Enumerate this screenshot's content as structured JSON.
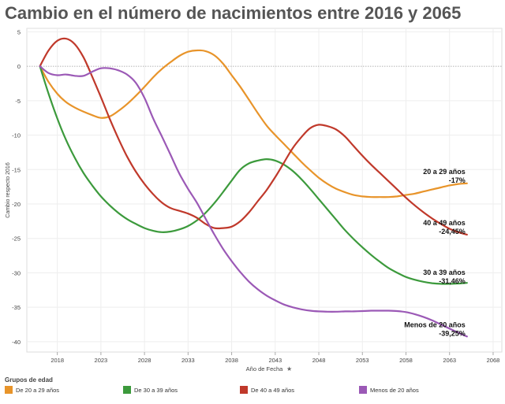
{
  "title": "Cambio en el número de nacimientos entre 2016 y 2065",
  "legend_title": "Grupos de edad",
  "legend": [
    {
      "label": "De 20 a 29 años",
      "color": "#E8942A"
    },
    {
      "label": "De 30 a 39 años",
      "color": "#3C9A3C"
    },
    {
      "label": "De 40 a 49 años",
      "color": "#C0392B"
    },
    {
      "label": "Menos de 20 años",
      "color": "#9B59B6"
    }
  ],
  "chart_data": {
    "type": "line",
    "title": "Cambio en el número de nacimientos entre 2016 y 2065",
    "xlabel": "Año de Fecha",
    "ylabel": "Cambio respecto 2016",
    "xlim": [
      2014.5,
      2069
    ],
    "ylim": [
      -41.5,
      5.5
    ],
    "x_ticks": [
      2018,
      2023,
      2028,
      2033,
      2038,
      2043,
      2048,
      2053,
      2058,
      2063,
      2068
    ],
    "y_ticks": [
      5,
      0,
      -5,
      -10,
      -15,
      -20,
      -25,
      -30,
      -35,
      -40
    ],
    "grid": true,
    "series": [
      {
        "name": "20 a 29 años",
        "color": "#E8942A",
        "end_label": "20 a 29 años",
        "end_value": "-17%",
        "x": [
          2016,
          2017,
          2018,
          2019,
          2020,
          2021,
          2022,
          2023,
          2024,
          2025,
          2026,
          2027,
          2028,
          2029,
          2030,
          2031,
          2032,
          2033,
          2034,
          2035,
          2036,
          2037,
          2038,
          2039,
          2040,
          2041,
          2042,
          2043,
          2044,
          2045,
          2046,
          2047,
          2048,
          2049,
          2050,
          2051,
          2052,
          2053,
          2054,
          2055,
          2056,
          2057,
          2058,
          2059,
          2060,
          2061,
          2062,
          2063,
          2064,
          2065
        ],
        "values": [
          0,
          -2.3,
          -4,
          -5.2,
          -6,
          -6.6,
          -7.1,
          -7.5,
          -7.3,
          -6.5,
          -5.5,
          -4.3,
          -3,
          -1.6,
          -0.4,
          0.6,
          1.5,
          2.1,
          2.3,
          2.2,
          1.6,
          0.4,
          -1.3,
          -3,
          -4.9,
          -6.8,
          -8.6,
          -10,
          -11.3,
          -12.6,
          -13.9,
          -15.1,
          -16.2,
          -17.1,
          -17.8,
          -18.3,
          -18.7,
          -18.9,
          -19,
          -19,
          -19,
          -18.9,
          -18.7,
          -18.5,
          -18.2,
          -17.9,
          -17.6,
          -17.3,
          -17.1,
          -17
        ]
      },
      {
        "name": "30 a 39 años",
        "color": "#3C9A3C",
        "end_label": "30 a 39 años",
        "end_value": "-31,46%",
        "x": [
          2016,
          2017,
          2018,
          2019,
          2020,
          2021,
          2022,
          2023,
          2024,
          2025,
          2026,
          2027,
          2028,
          2029,
          2030,
          2031,
          2032,
          2033,
          2034,
          2035,
          2036,
          2037,
          2038,
          2039,
          2040,
          2041,
          2042,
          2043,
          2044,
          2045,
          2046,
          2047,
          2048,
          2049,
          2050,
          2051,
          2052,
          2053,
          2054,
          2055,
          2056,
          2057,
          2058,
          2059,
          2060,
          2061,
          2062,
          2063,
          2064,
          2065
        ],
        "values": [
          0,
          -4,
          -7.6,
          -10.7,
          -13.3,
          -15.5,
          -17.3,
          -18.9,
          -20.2,
          -21.3,
          -22.2,
          -22.9,
          -23.5,
          -23.9,
          -24.1,
          -24,
          -23.7,
          -23.2,
          -22.4,
          -21.3,
          -19.9,
          -18.3,
          -16.6,
          -15,
          -14.1,
          -13.7,
          -13.5,
          -13.7,
          -14.3,
          -15.2,
          -16.4,
          -17.8,
          -19.3,
          -20.8,
          -22.3,
          -23.8,
          -25.1,
          -26.3,
          -27.4,
          -28.4,
          -29.3,
          -30,
          -30.6,
          -31,
          -31.3,
          -31.5,
          -31.6,
          -31.6,
          -31.55,
          -31.46
        ]
      },
      {
        "name": "40 a 49 años",
        "color": "#C0392B",
        "end_label": "40 a 49 años",
        "end_value": "-24,45%",
        "x": [
          2016,
          2017,
          2018,
          2019,
          2020,
          2021,
          2022,
          2023,
          2024,
          2025,
          2026,
          2027,
          2028,
          2029,
          2030,
          2031,
          2032,
          2033,
          2034,
          2035,
          2036,
          2037,
          2038,
          2039,
          2040,
          2041,
          2042,
          2043,
          2044,
          2045,
          2046,
          2047,
          2048,
          2049,
          2050,
          2051,
          2052,
          2053,
          2054,
          2055,
          2056,
          2057,
          2058,
          2059,
          2060,
          2061,
          2062,
          2063,
          2064,
          2065
        ],
        "values": [
          0,
          2.3,
          3.7,
          4,
          3.2,
          1.3,
          -1.5,
          -4.5,
          -7.6,
          -10.5,
          -13.1,
          -15.3,
          -17.1,
          -18.6,
          -19.8,
          -20.6,
          -21,
          -21.4,
          -22,
          -22.9,
          -23.5,
          -23.5,
          -23.3,
          -22.5,
          -21.2,
          -19.6,
          -18,
          -16.1,
          -14,
          -11.9,
          -10.3,
          -9,
          -8.5,
          -8.7,
          -9.2,
          -10.2,
          -11.6,
          -13,
          -14.3,
          -15.5,
          -16.7,
          -17.9,
          -19.1,
          -20.2,
          -21.2,
          -22.1,
          -22.9,
          -23.6,
          -24.1,
          -24.45
        ]
      },
      {
        "name": "Menos de 20 años",
        "color": "#9B59B6",
        "end_label": "Menos de 20 años",
        "end_value": "-39,25%",
        "x": [
          2016,
          2017,
          2018,
          2019,
          2020,
          2021,
          2022,
          2023,
          2024,
          2025,
          2026,
          2027,
          2028,
          2029,
          2030,
          2031,
          2032,
          2033,
          2034,
          2035,
          2036,
          2037,
          2038,
          2039,
          2040,
          2041,
          2042,
          2043,
          2044,
          2045,
          2046,
          2047,
          2048,
          2049,
          2050,
          2051,
          2052,
          2053,
          2054,
          2055,
          2056,
          2057,
          2058,
          2059,
          2060,
          2061,
          2062,
          2063,
          2064,
          2065
        ],
        "values": [
          0,
          -1,
          -1.3,
          -1.2,
          -1.4,
          -1.4,
          -0.8,
          -0.3,
          -0.3,
          -0.6,
          -1.2,
          -2.4,
          -4.6,
          -7.6,
          -10.2,
          -12.9,
          -15.6,
          -17.8,
          -19.8,
          -22.1,
          -24.4,
          -26.5,
          -28.3,
          -29.9,
          -31.3,
          -32.4,
          -33.3,
          -34,
          -34.6,
          -35,
          -35.3,
          -35.5,
          -35.6,
          -35.65,
          -35.65,
          -35.6,
          -35.6,
          -35.55,
          -35.5,
          -35.5,
          -35.5,
          -35.55,
          -35.7,
          -36,
          -36.4,
          -36.9,
          -37.5,
          -38.1,
          -38.7,
          -39.25
        ]
      }
    ]
  }
}
